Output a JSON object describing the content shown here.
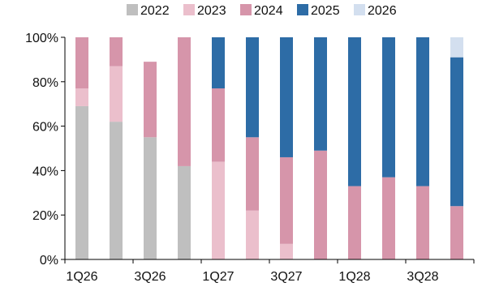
{
  "chart_data": {
    "type": "bar",
    "stacked": true,
    "categories": [
      "1Q26",
      "2Q26",
      "3Q26",
      "4Q26",
      "1Q27",
      "2Q27",
      "3Q27",
      "4Q27",
      "1Q28",
      "2Q28",
      "3Q28",
      "4Q28"
    ],
    "tick_labels": [
      "1Q26",
      "3Q26",
      "1Q27",
      "3Q27",
      "1Q28",
      "3Q28"
    ],
    "tick_categories": [
      "1Q26",
      "3Q26",
      "1Q27",
      "3Q27",
      "1Q28",
      "3Q28"
    ],
    "series": [
      {
        "name": "2022",
        "color": "#bfbfbf",
        "values": [
          69,
          62,
          55,
          42,
          0,
          0,
          0,
          0,
          0,
          0,
          0,
          0
        ]
      },
      {
        "name": "2023",
        "color": "#ebbfcc",
        "values": [
          8,
          25,
          0,
          0,
          44,
          22,
          7,
          0,
          0,
          0,
          0,
          0
        ]
      },
      {
        "name": "2024",
        "color": "#d695aa",
        "values": [
          23,
          13,
          34,
          58,
          33,
          33,
          39,
          49,
          33,
          37,
          33,
          24
        ]
      },
      {
        "name": "2025",
        "color": "#2d6ca6",
        "values": [
          0,
          0,
          0,
          0,
          23,
          45,
          54,
          51,
          67,
          63,
          67,
          67
        ]
      },
      {
        "name": "2026",
        "color": "#d3dfef",
        "values": [
          0,
          0,
          0,
          0,
          0,
          0,
          0,
          0,
          0,
          0,
          0,
          9
        ]
      }
    ],
    "yticks": [
      "0%",
      "20%",
      "40%",
      "60%",
      "80%",
      "100%"
    ],
    "ylim": [
      0,
      100
    ],
    "title": "",
    "xlabel": "",
    "ylabel": "",
    "legend_position": "top",
    "grid": false
  }
}
